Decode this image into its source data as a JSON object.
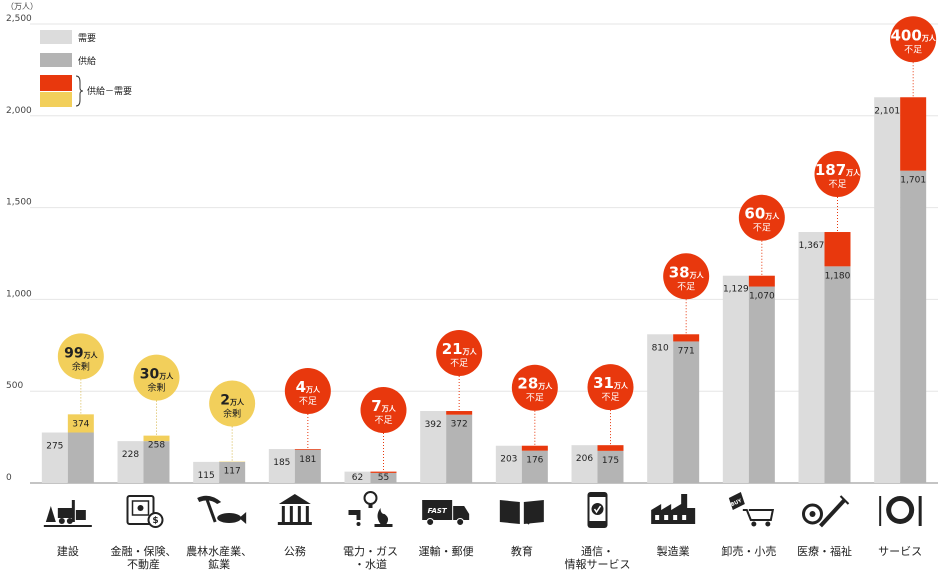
{
  "chart_data": {
    "type": "bar",
    "unit_label": "（万人）",
    "ylim": [
      0,
      2500
    ],
    "yticks": [
      0,
      500,
      1000,
      1500,
      2000,
      2500
    ],
    "ytick_labels": [
      "0",
      "500",
      "1,000",
      "1,500",
      "2,000",
      "2,500"
    ],
    "grid": true,
    "legend": {
      "placement": "top-left",
      "demand": "需要",
      "supply": "供給",
      "diff": "供給－需要"
    },
    "colors": {
      "demand": "#dcdcdc",
      "supply": "#b4b4b4",
      "shortage": "#e8380d",
      "surplus": "#f2cf5b",
      "grid": "#e6e6e6",
      "axis": "#888888"
    },
    "categories": [
      {
        "label_lines": [
          "建設"
        ],
        "icon": "construction-icon",
        "demand": 275,
        "supply": 374,
        "demand_label": "275",
        "supply_label": "374",
        "gap": "99",
        "gap_unit": "万人",
        "gap_text": "余剰",
        "kind": "surplus"
      },
      {
        "label_lines": [
          "金融・保険、",
          "不動産"
        ],
        "icon": "finance-safe-icon",
        "demand": 228,
        "supply": 258,
        "demand_label": "228",
        "supply_label": "258",
        "gap": "30",
        "gap_unit": "万人",
        "gap_text": "余剰",
        "kind": "surplus"
      },
      {
        "label_lines": [
          "農林水産業、",
          "鉱業"
        ],
        "icon": "pickaxe-fish-icon",
        "demand": 115,
        "supply": 117,
        "demand_label": "115",
        "supply_label": "117",
        "gap": "2",
        "gap_unit": "万人",
        "gap_text": "余剰",
        "kind": "surplus"
      },
      {
        "label_lines": [
          "公務"
        ],
        "icon": "government-building-icon",
        "demand": 185,
        "supply": 181,
        "demand_label": "185",
        "supply_label": "181",
        "gap": "4",
        "gap_unit": "万人",
        "gap_text": "不足",
        "kind": "shortage"
      },
      {
        "label_lines": [
          "電力・ガス",
          "・水道"
        ],
        "icon": "utilities-icon",
        "demand": 62,
        "supply": 55,
        "demand_label": "62",
        "supply_label": "55",
        "gap": "7",
        "gap_unit": "万人",
        "gap_text": "不足",
        "kind": "shortage"
      },
      {
        "label_lines": [
          "運輸・郵便"
        ],
        "icon": "delivery-truck-icon",
        "demand": 392,
        "supply": 372,
        "demand_label": "392",
        "supply_label": "372",
        "gap": "21",
        "gap_unit": "万人",
        "gap_text": "不足",
        "kind": "shortage"
      },
      {
        "label_lines": [
          "教育"
        ],
        "icon": "open-book-icon",
        "demand": 203,
        "supply": 176,
        "demand_label": "203",
        "supply_label": "176",
        "gap": "28",
        "gap_unit": "万人",
        "gap_text": "不足",
        "kind": "shortage"
      },
      {
        "label_lines": [
          "通信・",
          "情報サービス"
        ],
        "icon": "smartphone-icon",
        "demand": 206,
        "supply": 175,
        "demand_label": "206",
        "supply_label": "175",
        "gap": "31",
        "gap_unit": "万人",
        "gap_text": "不足",
        "kind": "shortage"
      },
      {
        "label_lines": [
          "製造業"
        ],
        "icon": "factory-icon",
        "demand": 810,
        "supply": 771,
        "demand_label": "810",
        "supply_label": "771",
        "gap": "38",
        "gap_unit": "万人",
        "gap_text": "不足",
        "kind": "shortage"
      },
      {
        "label_lines": [
          "卸売・小売"
        ],
        "icon": "shopping-cart-icon",
        "demand": 1129,
        "supply": 1070,
        "demand_label": "1,129",
        "supply_label": "1,070",
        "gap": "60",
        "gap_unit": "万人",
        "gap_text": "不足",
        "kind": "shortage"
      },
      {
        "label_lines": [
          "医療・福祉"
        ],
        "icon": "medical-icon",
        "demand": 1367,
        "supply": 1180,
        "demand_label": "1,367",
        "supply_label": "1,180",
        "gap": "187",
        "gap_unit": "万人",
        "gap_text": "不足",
        "kind": "shortage"
      },
      {
        "label_lines": [
          "サービス"
        ],
        "icon": "dining-icon",
        "demand": 2101,
        "supply": 1701,
        "demand_label": "2,101",
        "supply_label": "1,701",
        "gap": "400",
        "gap_unit": "万人",
        "gap_text": "不足",
        "kind": "shortage"
      }
    ]
  }
}
